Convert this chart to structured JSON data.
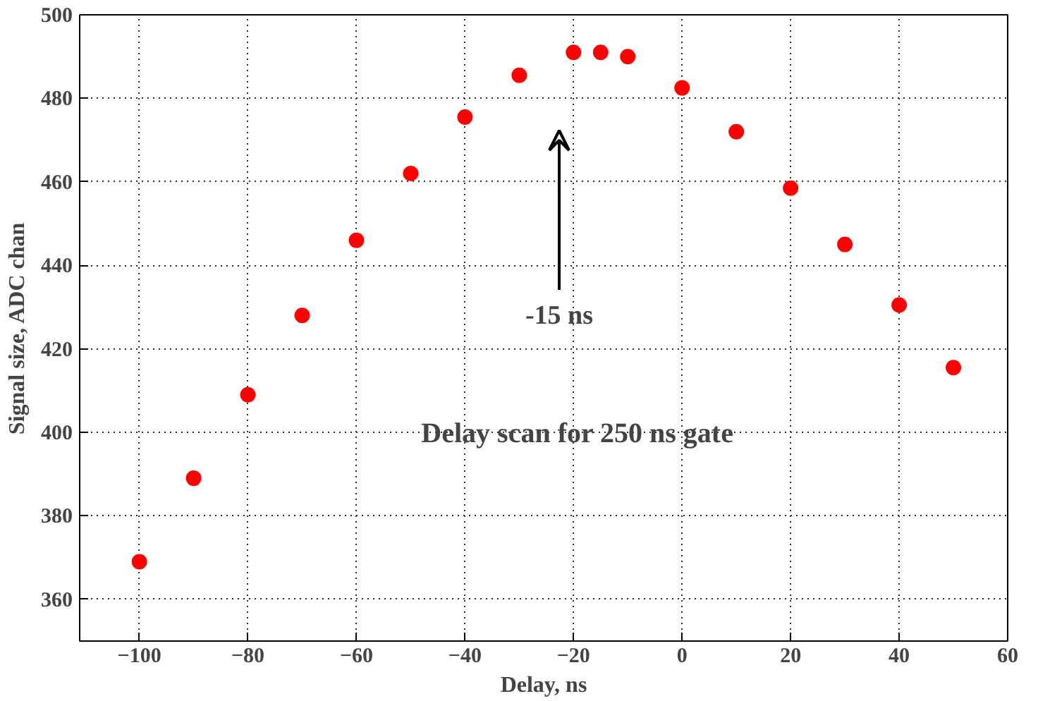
{
  "chart_data": {
    "type": "scatter",
    "xlabel": "Delay, ns",
    "ylabel": "Signal size, ADC chan",
    "x": [
      -100,
      -90,
      -80,
      -70,
      -60,
      -50,
      -40,
      -30,
      -20,
      -15,
      -10,
      0,
      10,
      20,
      30,
      40,
      50
    ],
    "series": [
      {
        "color": "#ff0000",
        "values": [
          369,
          389,
          409,
          428,
          446,
          462,
          475.5,
          485.5,
          491,
          491,
          490,
          482.5,
          472,
          458.5,
          445,
          430.5,
          415.5
        ]
      }
    ],
    "xlim": [
      -111,
      60
    ],
    "ylim": [
      350,
      500
    ],
    "xticks": [
      -100,
      -80,
      -60,
      -40,
      -20,
      0,
      20,
      40,
      60
    ],
    "yticks": [
      360,
      380,
      400,
      420,
      440,
      460,
      480,
      500
    ],
    "grid": true,
    "marker": "circle",
    "annotations": [
      "-15 ns",
      "Delay scan for 250 ns gate"
    ]
  }
}
